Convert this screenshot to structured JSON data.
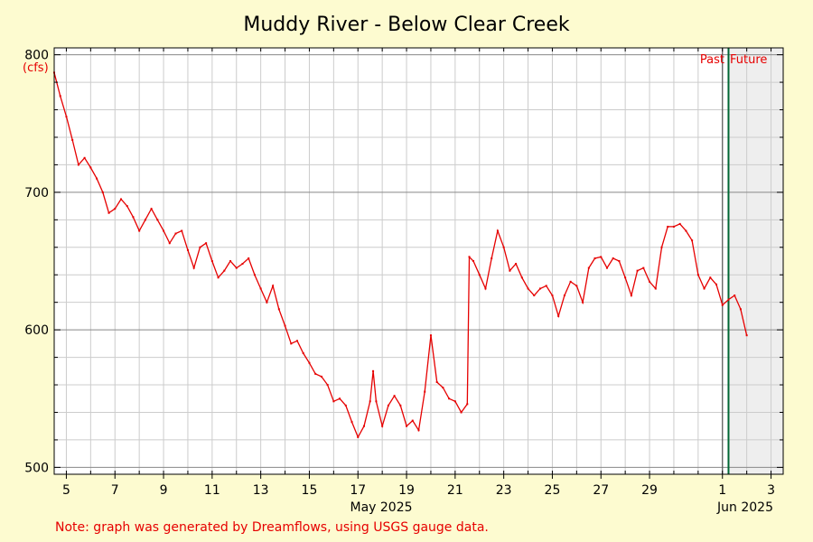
{
  "chart_data": {
    "type": "line",
    "title": "Muddy River - Below Clear Creek",
    "ylabel": "(cfs)",
    "xlabel": "May 2025",
    "x_secondary_label": "Jun 2025",
    "ylim": [
      495,
      805
    ],
    "xlim": [
      "2025-05-04T12:00",
      "2025-06-03T12:00"
    ],
    "y_ticks": [
      500,
      600,
      700,
      800
    ],
    "x_ticks": [
      {
        "label": "5",
        "date": "2025-05-05"
      },
      {
        "label": "7",
        "date": "2025-05-07"
      },
      {
        "label": "9",
        "date": "2025-05-09"
      },
      {
        "label": "11",
        "date": "2025-05-11"
      },
      {
        "label": "13",
        "date": "2025-05-13"
      },
      {
        "label": "15",
        "date": "2025-05-15"
      },
      {
        "label": "17",
        "date": "2025-05-17"
      },
      {
        "label": "19",
        "date": "2025-05-19"
      },
      {
        "label": "21",
        "date": "2025-05-21"
      },
      {
        "label": "23",
        "date": "2025-05-23"
      },
      {
        "label": "25",
        "date": "2025-05-25"
      },
      {
        "label": "27",
        "date": "2025-05-27"
      },
      {
        "label": "29",
        "date": "2025-05-29"
      },
      {
        "label": "1",
        "date": "2025-06-01"
      },
      {
        "label": "3",
        "date": "2025-06-03"
      }
    ],
    "now_marker": {
      "date": "2025-06-01T06:00",
      "past_label": "Past",
      "future_label": "Future"
    },
    "month_divider": "2025-06-01",
    "grid": true,
    "series": [
      {
        "color": "#e60000",
        "points": [
          [
            "2025-05-04T12:00",
            787
          ],
          [
            "2025-05-04T18:00",
            770
          ],
          [
            "2025-05-05T00:00",
            755
          ],
          [
            "2025-05-05T06:00",
            738
          ],
          [
            "2025-05-05T12:00",
            720
          ],
          [
            "2025-05-05T18:00",
            725
          ],
          [
            "2025-05-06T00:00",
            718
          ],
          [
            "2025-05-06T06:00",
            710
          ],
          [
            "2025-05-06T12:00",
            700
          ],
          [
            "2025-05-06T18:00",
            685
          ],
          [
            "2025-05-07T00:00",
            688
          ],
          [
            "2025-05-07T06:00",
            695
          ],
          [
            "2025-05-07T12:00",
            690
          ],
          [
            "2025-05-07T18:00",
            682
          ],
          [
            "2025-05-08T00:00",
            672
          ],
          [
            "2025-05-08T06:00",
            680
          ],
          [
            "2025-05-08T12:00",
            688
          ],
          [
            "2025-05-08T18:00",
            680
          ],
          [
            "2025-05-09T00:00",
            672
          ],
          [
            "2025-05-09T06:00",
            663
          ],
          [
            "2025-05-09T12:00",
            670
          ],
          [
            "2025-05-09T18:00",
            672
          ],
          [
            "2025-05-10T00:00",
            658
          ],
          [
            "2025-05-10T06:00",
            645
          ],
          [
            "2025-05-10T12:00",
            660
          ],
          [
            "2025-05-10T18:00",
            663
          ],
          [
            "2025-05-11T00:00",
            650
          ],
          [
            "2025-05-11T06:00",
            638
          ],
          [
            "2025-05-11T12:00",
            643
          ],
          [
            "2025-05-11T18:00",
            650
          ],
          [
            "2025-05-12T00:00",
            645
          ],
          [
            "2025-05-12T06:00",
            648
          ],
          [
            "2025-05-12T12:00",
            652
          ],
          [
            "2025-05-12T18:00",
            640
          ],
          [
            "2025-05-13T00:00",
            630
          ],
          [
            "2025-05-13T06:00",
            620
          ],
          [
            "2025-05-13T12:00",
            632
          ],
          [
            "2025-05-13T18:00",
            615
          ],
          [
            "2025-05-14T00:00",
            603
          ],
          [
            "2025-05-14T06:00",
            590
          ],
          [
            "2025-05-14T12:00",
            592
          ],
          [
            "2025-05-14T18:00",
            583
          ],
          [
            "2025-05-15T00:00",
            576
          ],
          [
            "2025-05-15T06:00",
            568
          ],
          [
            "2025-05-15T12:00",
            566
          ],
          [
            "2025-05-15T18:00",
            560
          ],
          [
            "2025-05-16T00:00",
            548
          ],
          [
            "2025-05-16T06:00",
            550
          ],
          [
            "2025-05-16T12:00",
            545
          ],
          [
            "2025-05-16T18:00",
            533
          ],
          [
            "2025-05-17T00:00",
            522
          ],
          [
            "2025-05-17T06:00",
            530
          ],
          [
            "2025-05-17T12:00",
            548
          ],
          [
            "2025-05-17T15:00",
            570
          ],
          [
            "2025-05-17T18:00",
            548
          ],
          [
            "2025-05-18T00:00",
            530
          ],
          [
            "2025-05-18T06:00",
            545
          ],
          [
            "2025-05-18T12:00",
            552
          ],
          [
            "2025-05-18T18:00",
            545
          ],
          [
            "2025-05-19T00:00",
            530
          ],
          [
            "2025-05-19T06:00",
            534
          ],
          [
            "2025-05-19T12:00",
            527
          ],
          [
            "2025-05-19T18:00",
            555
          ],
          [
            "2025-05-20T00:00",
            596
          ],
          [
            "2025-05-20T06:00",
            562
          ],
          [
            "2025-05-20T12:00",
            558
          ],
          [
            "2025-05-20T18:00",
            550
          ],
          [
            "2025-05-21T00:00",
            548
          ],
          [
            "2025-05-21T06:00",
            540
          ],
          [
            "2025-05-21T12:00",
            546
          ],
          [
            "2025-05-21T14:00",
            653
          ],
          [
            "2025-05-21T18:00",
            650
          ],
          [
            "2025-05-22T00:00",
            640
          ],
          [
            "2025-05-22T06:00",
            630
          ],
          [
            "2025-05-22T12:00",
            652
          ],
          [
            "2025-05-22T18:00",
            672
          ],
          [
            "2025-05-23T00:00",
            660
          ],
          [
            "2025-05-23T06:00",
            643
          ],
          [
            "2025-05-23T12:00",
            648
          ],
          [
            "2025-05-23T18:00",
            638
          ],
          [
            "2025-05-24T00:00",
            630
          ],
          [
            "2025-05-24T06:00",
            625
          ],
          [
            "2025-05-24T12:00",
            630
          ],
          [
            "2025-05-24T18:00",
            632
          ],
          [
            "2025-05-25T00:00",
            625
          ],
          [
            "2025-05-25T06:00",
            610
          ],
          [
            "2025-05-25T12:00",
            625
          ],
          [
            "2025-05-25T18:00",
            635
          ],
          [
            "2025-05-26T00:00",
            632
          ],
          [
            "2025-05-26T06:00",
            620
          ],
          [
            "2025-05-26T12:00",
            645
          ],
          [
            "2025-05-26T18:00",
            652
          ],
          [
            "2025-05-27T00:00",
            653
          ],
          [
            "2025-05-27T06:00",
            645
          ],
          [
            "2025-05-27T12:00",
            652
          ],
          [
            "2025-05-27T18:00",
            650
          ],
          [
            "2025-05-28T00:00",
            638
          ],
          [
            "2025-05-28T06:00",
            625
          ],
          [
            "2025-05-28T12:00",
            643
          ],
          [
            "2025-05-28T18:00",
            645
          ],
          [
            "2025-05-29T00:00",
            635
          ],
          [
            "2025-05-29T06:00",
            630
          ],
          [
            "2025-05-29T12:00",
            660
          ],
          [
            "2025-05-29T18:00",
            675
          ],
          [
            "2025-05-30T00:00",
            675
          ],
          [
            "2025-05-30T06:00",
            677
          ],
          [
            "2025-05-30T12:00",
            672
          ],
          [
            "2025-05-30T18:00",
            665
          ],
          [
            "2025-05-31T00:00",
            640
          ],
          [
            "2025-05-31T06:00",
            630
          ],
          [
            "2025-05-31T12:00",
            638
          ],
          [
            "2025-05-31T18:00",
            633
          ],
          [
            "2025-06-01T00:00",
            618
          ],
          [
            "2025-06-01T06:00",
            622
          ],
          [
            "2025-06-01T12:00",
            625
          ],
          [
            "2025-06-01T18:00",
            615
          ],
          [
            "2025-06-02T00:00",
            596
          ]
        ]
      }
    ],
    "footnote": "Note: graph was generated by Dreamflows, using USGS gauge data."
  },
  "colors": {
    "background": "#fdfbd0",
    "plot_background": "#ffffff",
    "future_shade": "#eeeeee",
    "grid_minor": "#cccccc",
    "grid_major": "#888888",
    "line": "#e60000",
    "now_line": "#006633",
    "text": "#000000",
    "accent_text": "#e60000"
  }
}
